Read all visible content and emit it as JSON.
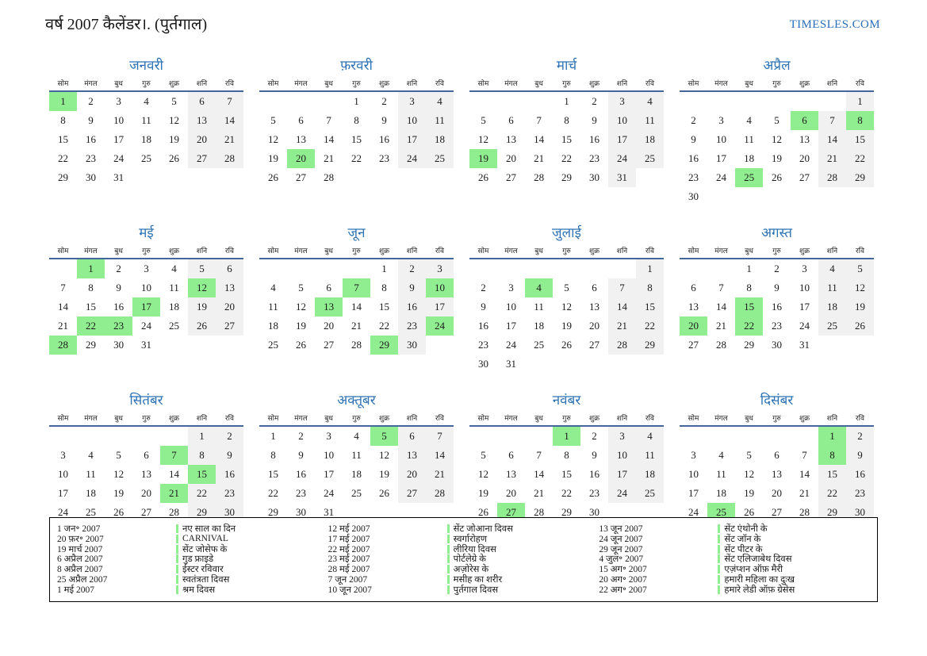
{
  "page": {
    "title": "वर्ष 2007 कैलेंडर।. (पुर्तगाल)",
    "brand": "TIMESLES.COM"
  },
  "colors": {
    "month_title": "#2E74B5",
    "brand": "#2A6EBB",
    "holiday": "#90EE90",
    "weekend": "#F1F1F1",
    "header_line": "#44679B"
  },
  "calendar": {
    "year": 2007,
    "weekdays": [
      "सोम",
      "मंगल",
      "बुध",
      "गुरु",
      "शुक्र",
      "शनि",
      "रवि"
    ],
    "months": [
      {
        "name": "जनवरी",
        "start": 0,
        "days": 31,
        "holidays": [
          1
        ]
      },
      {
        "name": "फ़रवरी",
        "start": 3,
        "days": 28,
        "holidays": [
          20
        ]
      },
      {
        "name": "मार्च",
        "start": 3,
        "days": 31,
        "holidays": [
          19
        ]
      },
      {
        "name": "अप्रैल",
        "start": 6,
        "days": 30,
        "holidays": [
          6,
          8,
          25
        ]
      },
      {
        "name": "मई",
        "start": 1,
        "days": 31,
        "holidays": [
          1,
          12,
          17,
          22,
          23,
          28
        ]
      },
      {
        "name": "जून",
        "start": 4,
        "days": 30,
        "holidays": [
          7,
          10,
          13,
          24,
          29
        ]
      },
      {
        "name": "जुलाई",
        "start": 6,
        "days": 31,
        "holidays": [
          4
        ]
      },
      {
        "name": "अगस्त",
        "start": 2,
        "days": 31,
        "holidays": [
          15,
          20,
          22
        ]
      },
      {
        "name": "सितंबर",
        "start": 5,
        "days": 30,
        "holidays": [
          7,
          15,
          21
        ]
      },
      {
        "name": "अक्तूबर",
        "start": 0,
        "days": 31,
        "holidays": [
          5
        ]
      },
      {
        "name": "नवंबर",
        "start": 3,
        "days": 30,
        "holidays": [
          1,
          27
        ]
      },
      {
        "name": "दिसंबर",
        "start": 5,
        "days": 31,
        "holidays": [
          1,
          8,
          25
        ]
      }
    ]
  },
  "legend": {
    "columns": [
      [
        {
          "date": "1 जन॰ 2007",
          "name": "नए साल का दिन"
        },
        {
          "date": "20 फ़र॰ 2007",
          "name": "CARNIVAL"
        },
        {
          "date": "19 मार्च 2007",
          "name": "सेंट जोसेफ के"
        },
        {
          "date": "6 अप्रैल 2007",
          "name": "गुड फ्राइडे"
        },
        {
          "date": "8 अप्रैल 2007",
          "name": "ईस्टर रविवार"
        },
        {
          "date": "25 अप्रैल 2007",
          "name": "स्वतंत्रता दिवस"
        },
        {
          "date": "1 मई 2007",
          "name": "श्रम दिवस"
        }
      ],
      [
        {
          "date": "12 मई 2007",
          "name": "सेंट जोआना दिवस"
        },
        {
          "date": "17 मई 2007",
          "name": "स्वर्गारोहण"
        },
        {
          "date": "22 मई 2007",
          "name": "लीरिया दिवस"
        },
        {
          "date": "23 मई 2007",
          "name": "पोर्टलेग्रे के"
        },
        {
          "date": "28 मई 2007",
          "name": "अज़ोरेस के"
        },
        {
          "date": "7 जून 2007",
          "name": "मसीह का शरीर"
        },
        {
          "date": "10 जून 2007",
          "name": "पुर्तगाल दिवस"
        }
      ],
      [
        {
          "date": "13 जून 2007",
          "name": "सेंट एंथोनी के"
        },
        {
          "date": "24 जून 2007",
          "name": "सेंट जॉन के"
        },
        {
          "date": "29 जून 2007",
          "name": "सेंट पीटर के"
        },
        {
          "date": "4 जुल॰ 2007",
          "name": "सेंट एलिजाबेथ दिवस"
        },
        {
          "date": "15 अग॰ 2007",
          "name": "एज़ंप्शन ऑफ़ मैरी"
        },
        {
          "date": "20 अग॰ 2007",
          "name": "हमारी महिला का दुःख"
        },
        {
          "date": "22 अग॰ 2007",
          "name": "हमारे लेडी ऑफ़ ग्रेसेस"
        }
      ]
    ]
  }
}
